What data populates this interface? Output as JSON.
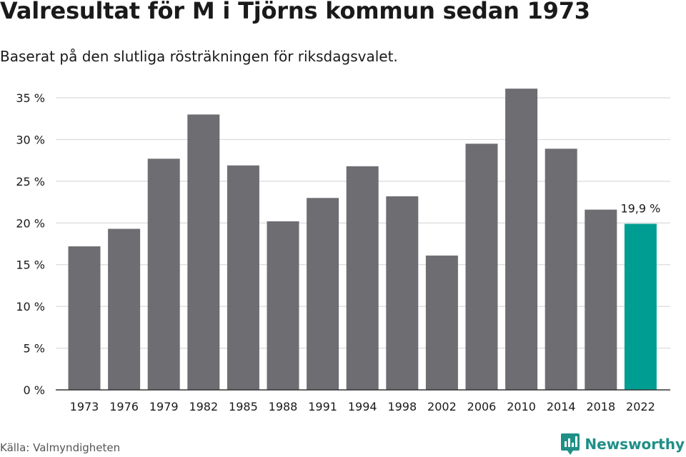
{
  "header": {
    "title": "Valresultat för M i Tjörns kommun sedan 1973",
    "subtitle": "Baserat på den slutliga rösträkningen för riksdagsvalet."
  },
  "chart_data": {
    "type": "bar",
    "title": "Valresultat för M i Tjörns kommun sedan 1973",
    "subtitle": "Baserat på den slutliga rösträkningen för riksdagsvalet.",
    "xlabel": "",
    "ylabel": "",
    "categories": [
      "1973",
      "1976",
      "1979",
      "1982",
      "1985",
      "1988",
      "1991",
      "1994",
      "1998",
      "2002",
      "2006",
      "2010",
      "2014",
      "2018",
      "2022"
    ],
    "values": [
      17.2,
      19.3,
      27.7,
      33.0,
      26.9,
      20.2,
      23.0,
      26.8,
      23.2,
      16.1,
      29.5,
      36.1,
      28.9,
      21.6,
      19.9
    ],
    "yticks": [
      0,
      5,
      10,
      15,
      20,
      25,
      30,
      35
    ],
    "ytick_labels": [
      "0 %",
      "5 %",
      "10 %",
      "15 %",
      "20 %",
      "25 %",
      "30 %",
      "35 %"
    ],
    "ylim": [
      0,
      37
    ],
    "grid": true,
    "highlight_index": 14,
    "annotations": [
      {
        "category": "2022",
        "text": "19,9 %"
      }
    ],
    "colors": {
      "bar": "#6e6d72",
      "highlight": "#009e92",
      "grid": "#d9d9d9",
      "axis": "#333333"
    }
  },
  "footer": {
    "source": "Källa: Valmyndigheten",
    "brand": "Newsworthy",
    "brand_icon": "newsworthy-logo-icon",
    "brand_color": "#1f8f87"
  }
}
